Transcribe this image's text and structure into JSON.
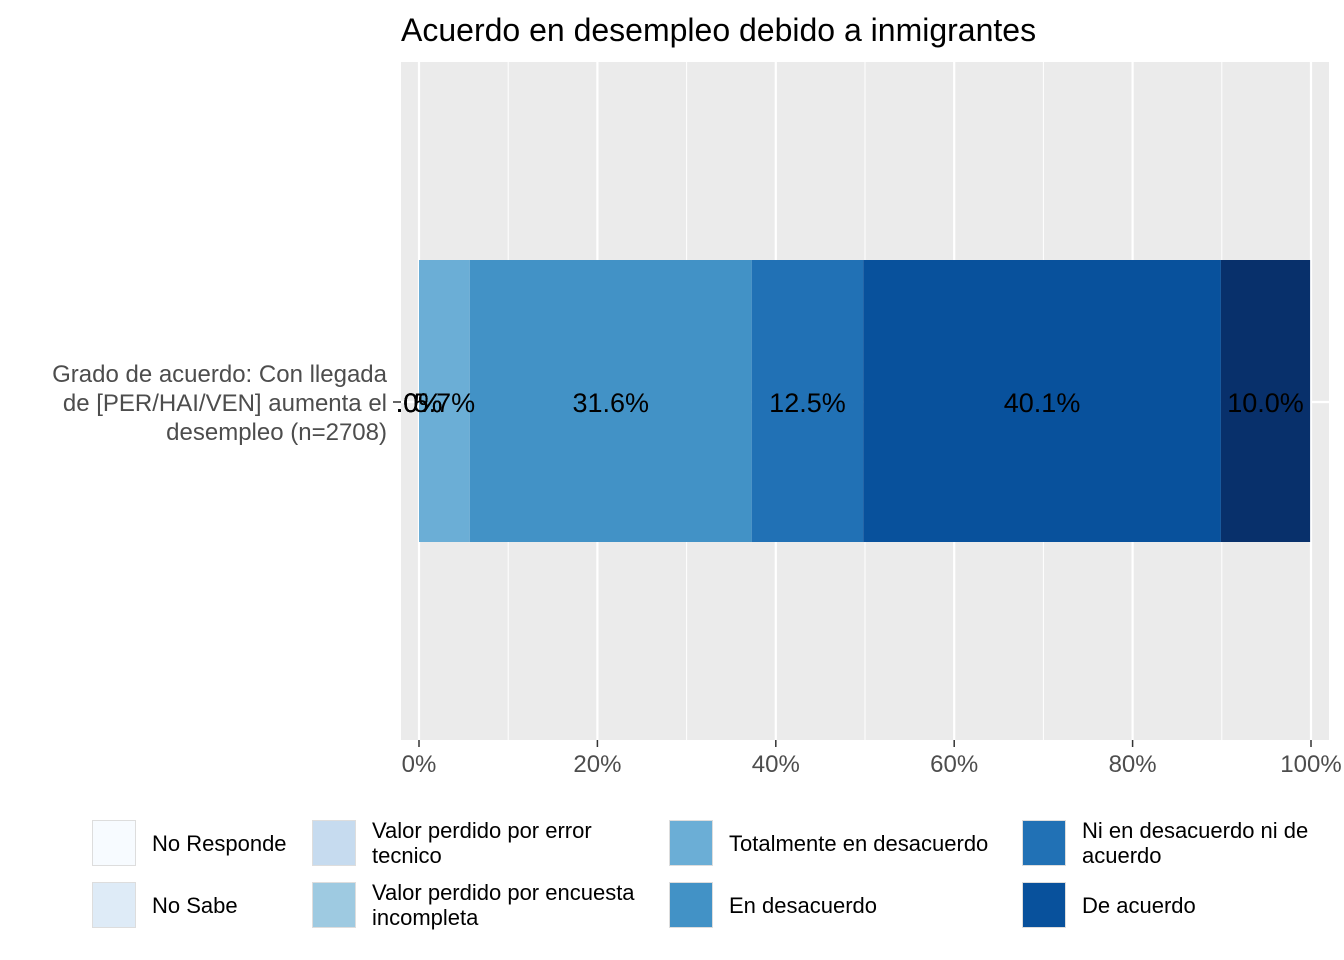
{
  "chart_data": {
    "type": "bar",
    "orientation": "horizontal",
    "stacked": true,
    "title": "Acuerdo en desempleo debido a inmigrantes",
    "categories": [
      "Grado de acuerdo: Con llegada de [PER/HAI/VEN] aumenta el desempleo (n=2708)"
    ],
    "category_label_lines": [
      "Grado de acuerdo: Con llegada",
      "de [PER/HAI/VEN] aumenta el",
      "desempleo (n=2708)"
    ],
    "x_ticks": [
      "0%",
      "20%",
      "40%",
      "60%",
      "80%",
      "100%"
    ],
    "xlim": [
      0,
      100
    ],
    "grid": true,
    "legend_position": "bottom",
    "series": [
      {
        "name": "No Responde",
        "values": [
          0.0
        ],
        "color": "#F7FBFF"
      },
      {
        "name": "No Sabe",
        "values": [
          0.0
        ],
        "color": "#DEEBF7"
      },
      {
        "name": "Valor perdido por error tecnico",
        "values": [
          0.0
        ],
        "color": "#C6DBEF"
      },
      {
        "name": "Valor perdido por encuesta incompleta",
        "values": [
          0.0
        ],
        "color": "#9ECAE1"
      },
      {
        "name": "Totalmente en desacuerdo",
        "values": [
          5.7
        ],
        "color": "#6BAED6"
      },
      {
        "name": "En desacuerdo",
        "values": [
          31.6
        ],
        "color": "#4292C6"
      },
      {
        "name": "Ni en desacuerdo ni de acuerdo",
        "values": [
          12.5
        ],
        "color": "#2171B5"
      },
      {
        "name": "De acuerdo",
        "values": [
          40.1
        ],
        "color": "#08519C"
      },
      {
        "name": "",
        "values": [
          10.0
        ],
        "color": "#08306B"
      }
    ],
    "data_labels": [
      ".0%",
      ".0%",
      ".0%",
      ".0%",
      "5.7%",
      "31.6%",
      "12.5%",
      "40.1%",
      "10.0%"
    ]
  }
}
